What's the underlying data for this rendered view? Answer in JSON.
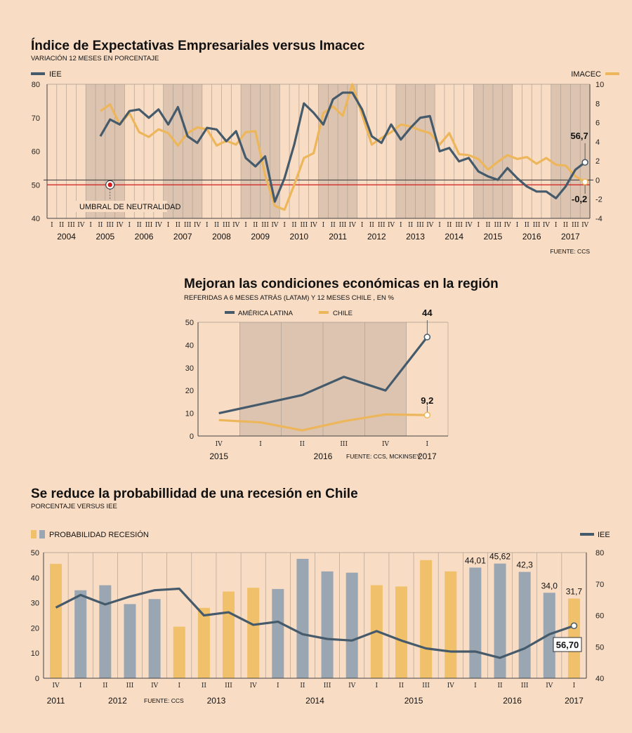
{
  "colors": {
    "blue": "#455a6b",
    "gold": "#eeb65a",
    "shade": "#dcc4b0",
    "red": "#d21b1b",
    "barBlue": "#9aa6b2",
    "barGold": "#f0c06a"
  },
  "chart_data": [
    {
      "type": "line",
      "title": "Índice de Expectativas Empresariales versus Imacec",
      "subtitle": "VARIACIÓN 12 MESES EN PORCENTAJE",
      "source": "FUENTE: CCS",
      "quarters": [
        "I",
        "II",
        "III",
        "IV"
      ],
      "years": [
        "2004",
        "2005",
        "2006",
        "2007",
        "2008",
        "2009",
        "2010",
        "2011",
        "2012",
        "2013",
        "2014",
        "2015",
        "2016",
        "2017"
      ],
      "ylim_left": [
        40,
        80
      ],
      "yticks_left": [
        40,
        50,
        60,
        70,
        80
      ],
      "ylim_right": [
        -4,
        10
      ],
      "yticks_right": [
        -4,
        -2,
        0,
        2,
        4,
        6,
        8,
        10
      ],
      "threshold": {
        "value": 50,
        "label": "UMBRAL DE NEUTRALIDAD"
      },
      "series": [
        {
          "name": "IEE",
          "axis": "left",
          "values": [
            64.5,
            69.5,
            68,
            72,
            72.5,
            70,
            72.5,
            68,
            73.2,
            64.5,
            62.5,
            67,
            66.5,
            63,
            66,
            58,
            55.5,
            58.5,
            45,
            52,
            62,
            74.3,
            71.5,
            68,
            75.5,
            77.5,
            77.5,
            72.5,
            64.5,
            62.5,
            68,
            63.5,
            67,
            70,
            70.5,
            60,
            61,
            57,
            58,
            54,
            52.5,
            51.5,
            55,
            52,
            49.5,
            48,
            48,
            46,
            49.5,
            54.5,
            56.7
          ],
          "end_label": "56,7"
        },
        {
          "name": "IMACEC",
          "axis": "right",
          "values": [
            7.2,
            7.9,
            5.8,
            7,
            5,
            4.5,
            5.3,
            4.9,
            3.6,
            4.9,
            5.5,
            5.3,
            3.6,
            4.1,
            3.7,
            5,
            5.1,
            0.5,
            -2.7,
            -3.1,
            -0.5,
            2.3,
            2.8,
            7,
            7.7,
            6.7,
            10,
            6.8,
            3.7,
            4.4,
            5,
            5.8,
            5.6,
            5.2,
            4.9,
            3.7,
            4.9,
            2.7,
            2.6,
            2.2,
            1.1,
            1.9,
            2.6,
            2.2,
            2.4,
            1.7,
            2.3,
            1.6,
            1.5,
            0.4,
            -0.2
          ],
          "end_label": "-0,2"
        }
      ]
    },
    {
      "type": "line",
      "title": "Mejoran las condiciones económicas en la región",
      "subtitle": "REFERIDAS A 6 MESES ATRÁS (LATAM) Y 12 MESES CHILE , EN %",
      "source": "FUENTE: CCS, MCKINSEY",
      "categories": [
        "IV",
        "I",
        "II",
        "III",
        "IV",
        "I"
      ],
      "years": [
        {
          "label": "2015",
          "at": 0
        },
        {
          "label": "2016",
          "at": 2.5
        },
        {
          "label": "2017",
          "at": 5
        }
      ],
      "ylim": [
        0,
        50
      ],
      "yticks": [
        0,
        10,
        20,
        30,
        40,
        50
      ],
      "series": [
        {
          "name": "AMÉRICA LATINA",
          "values": [
            10,
            14,
            18,
            26,
            20,
            43.5
          ],
          "end_label": "44"
        },
        {
          "name": "CHILE",
          "values": [
            7,
            6,
            2.5,
            6.5,
            9.5,
            9.2
          ],
          "end_label": "9,2"
        }
      ]
    },
    {
      "type": "bar",
      "title": "Se reduce la probabillidad de una recesión en Chile",
      "subtitle": "PORCENTAJE VERSUS IEE",
      "source": "FUENTE: CCS",
      "categories": [
        "IV",
        "I",
        "II",
        "III",
        "IV",
        "I",
        "II",
        "III",
        "IV",
        "I",
        "II",
        "III",
        "IV",
        "I",
        "II",
        "III",
        "IV",
        "I",
        "II",
        "III",
        "IV",
        "I"
      ],
      "years": [
        {
          "label": "2011",
          "at": 0
        },
        {
          "label": "2012",
          "at": 2.5
        },
        {
          "label": "2013",
          "at": 6.5
        },
        {
          "label": "2014",
          "at": 10.5
        },
        {
          "label": "2015",
          "at": 14.5
        },
        {
          "label": "2016",
          "at": 18.5
        },
        {
          "label": "2017",
          "at": 21
        }
      ],
      "ylim_left": [
        0,
        50
      ],
      "yticks_left": [
        0,
        10,
        20,
        30,
        40,
        50
      ],
      "ylim_right": [
        40,
        80
      ],
      "yticks_right": [
        40,
        50,
        60,
        70,
        80
      ],
      "series": [
        {
          "name": "PROBABILIDAD RECESIÓN",
          "axis": "left",
          "values": [
            45.5,
            35,
            37,
            29.5,
            31.5,
            20.5,
            28,
            34.5,
            36,
            35.5,
            47.5,
            42.5,
            42,
            37,
            36.5,
            47,
            42.5,
            44.01,
            45.62,
            42.3,
            34.0,
            31.7
          ],
          "colors": [
            "gold",
            "blue",
            "blue",
            "blue",
            "blue",
            "gold",
            "gold",
            "gold",
            "gold",
            "blue",
            "blue",
            "blue",
            "blue",
            "gold",
            "gold",
            "gold",
            "gold",
            "blue",
            "blue",
            "blue",
            "blue",
            "gold"
          ],
          "labels": [
            "",
            "",
            "",
            "",
            "",
            "",
            "",
            "",
            "",
            "",
            "",
            "",
            "",
            "",
            "",
            "",
            "",
            "44,01",
            "45,62",
            "42,3",
            "34,0",
            "31,7"
          ]
        },
        {
          "name": "IEE",
          "axis": "right",
          "values": [
            62.5,
            66.5,
            63.5,
            66,
            68,
            68.5,
            60,
            61,
            57,
            58,
            54,
            52.5,
            52,
            55,
            52,
            49.5,
            48.5,
            48.5,
            46.5,
            49.5,
            54,
            56.7
          ],
          "end_label": "56,70"
        }
      ]
    }
  ]
}
